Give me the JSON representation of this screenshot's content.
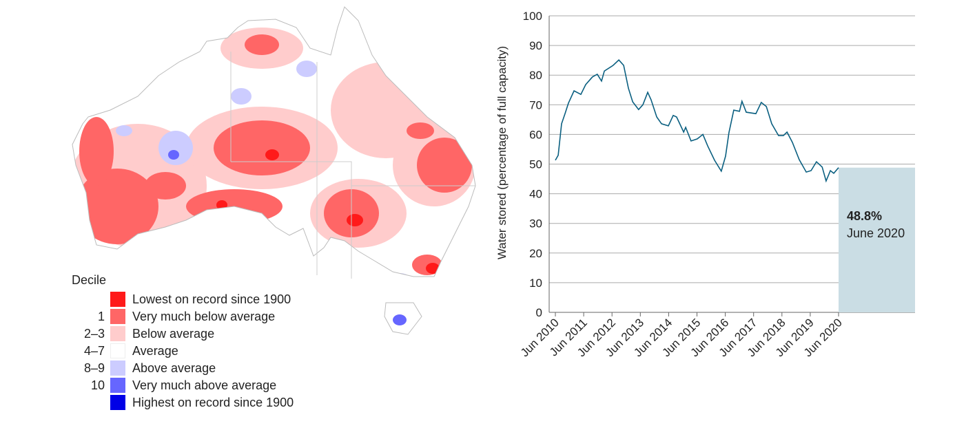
{
  "map_legend": {
    "title": "Decile",
    "items": [
      {
        "decile": "",
        "label": "Lowest on record since 1900",
        "color": "#ff1a1a"
      },
      {
        "decile": "1",
        "label": "Very much below average",
        "color": "#ff6666"
      },
      {
        "decile": "2–3",
        "label": "Below average",
        "color": "#ffcccc"
      },
      {
        "decile": "4–7",
        "label": "Average",
        "color": "#ffffff"
      },
      {
        "decile": "8–9",
        "label": "Above average",
        "color": "#ccccff"
      },
      {
        "decile": "10",
        "label": "Very much above average",
        "color": "#6666ff"
      },
      {
        "decile": "",
        "label": "Highest on record since 1900",
        "color": "#0000e6"
      }
    ]
  },
  "chart_data": {
    "type": "line",
    "ylabel": "Water stored (percentage of full capacity)",
    "xlabel": "",
    "ylim": [
      0,
      100
    ],
    "yticks": [
      0,
      10,
      20,
      30,
      40,
      50,
      60,
      70,
      80,
      90,
      100
    ],
    "xlim_years_from_jun_2010": [
      0,
      12.7
    ],
    "xtick_labels": [
      "Jun 2010",
      "Jun 2011",
      "Jun 2012",
      "Jun 2013",
      "Jun 2014",
      "Jun 2015",
      "Jun 2016",
      "Jun 2017",
      "Jun 2018",
      "Jun 2019",
      "Jun 2020"
    ],
    "grid": true,
    "line_color": "#0a5f80",
    "series": [
      {
        "name": "Water stored",
        "x": [
          0,
          0.1,
          0.22,
          0.34,
          0.46,
          0.66,
          0.9,
          1.07,
          1.31,
          1.48,
          1.63,
          1.73,
          2.04,
          2.24,
          2.41,
          2.58,
          2.73,
          2.94,
          3.09,
          3.26,
          3.38,
          3.58,
          3.75,
          3.99,
          4.16,
          4.28,
          4.53,
          4.6,
          4.79,
          5.01,
          5.21,
          5.38,
          5.62,
          5.86,
          6.01,
          6.13,
          6.3,
          6.5,
          6.59,
          6.74,
          7.08,
          7.27,
          7.45,
          7.64,
          7.88,
          8.05,
          8.18,
          8.37,
          8.61,
          8.86,
          9.03,
          9.22,
          9.42,
          9.56,
          9.71,
          9.83,
          10.0
        ],
        "y": [
          51.3,
          53,
          63.6,
          67,
          70.5,
          74.7,
          73.5,
          76.8,
          79.4,
          80.3,
          78,
          81.4,
          83.3,
          85.1,
          83.3,
          75.6,
          71,
          68.4,
          70,
          74.2,
          71.7,
          65.9,
          63.6,
          62.9,
          66.4,
          65.9,
          60.8,
          62.4,
          57.8,
          58.5,
          60,
          56.1,
          51.3,
          47.6,
          52.7,
          60.6,
          68.2,
          67.8,
          71.2,
          67.5,
          67,
          70.8,
          69.4,
          63.6,
          59.6,
          59.6,
          60.8,
          57.3,
          51.5,
          47.3,
          47.8,
          50.8,
          49,
          44.3,
          47.8,
          46.9,
          48.8
        ]
      }
    ],
    "highlight": {
      "value": "48.8%",
      "label": "June 2020",
      "color": "#cadde4"
    }
  }
}
